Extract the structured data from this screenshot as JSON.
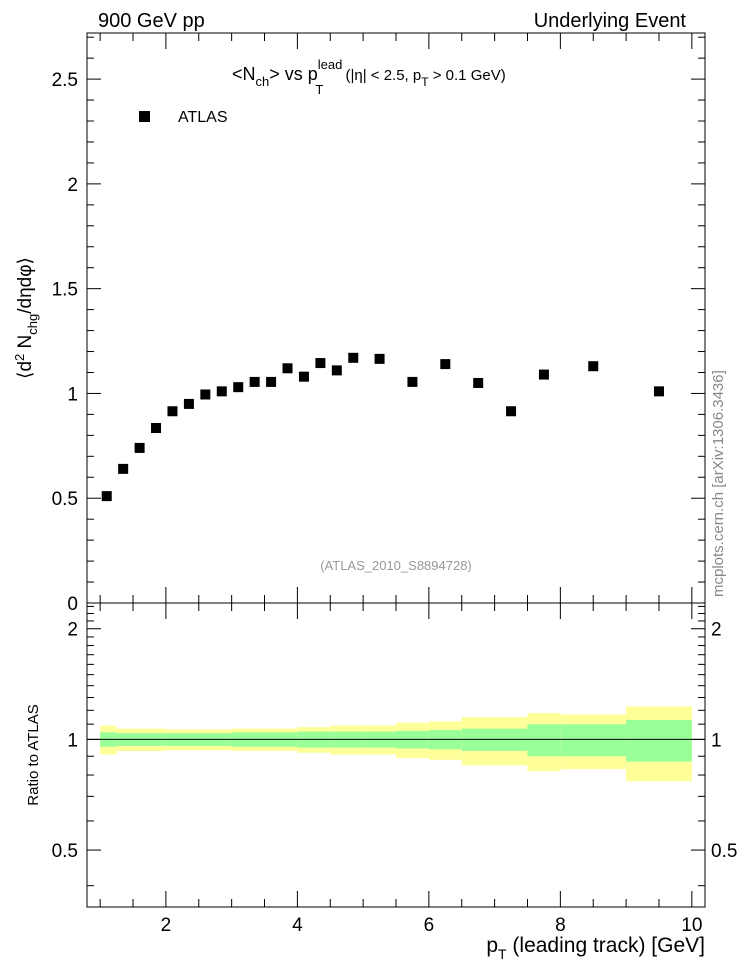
{
  "header": {
    "left": "900 GeV pp",
    "right": "Underlying Event"
  },
  "title": {
    "main": "<N",
    "main_sub": "ch",
    "vs": "> vs p",
    "lead_sup": "lead",
    "lead_sub": "T",
    "cuts_a": " (|η| < 2.5, p",
    "cuts_sub": "T",
    "cuts_b": " > 0.1 GeV)"
  },
  "side_label": "mcplots.cern.ch [arXiv:1306.3436]",
  "analysis_label": "(ATLAS_2010_S8894728)",
  "legend": {
    "entry": "ATLAS"
  },
  "y_label": {
    "prefix": "⟨d",
    "sup": "2",
    "mid": " N",
    "sub": "chg",
    "suffix": "/dηdφ⟩"
  },
  "ratio_y_label": "Ratio to ATLAS",
  "x_label": {
    "prefix": "p",
    "sub": "T",
    "suffix": " (leading track) [GeV]"
  },
  "colors": {
    "band_outer": "#ffff99",
    "band_inner": "#99ff99",
    "marker": "#000000",
    "gray_text": "#999999"
  },
  "chart_data": {
    "type": "scatter",
    "main": {
      "xlim": [
        0.8,
        10.2
      ],
      "ylim": [
        0,
        2.72
      ],
      "yticks": [
        0,
        0.5,
        1,
        1.5,
        2,
        2.5
      ],
      "ytick_labels": [
        "0",
        "0.5",
        "1",
        "1.5",
        "2",
        "2.5"
      ],
      "series": [
        {
          "name": "ATLAS",
          "x": [
            1.1,
            1.35,
            1.6,
            1.85,
            2.1,
            2.35,
            2.6,
            2.85,
            3.1,
            3.35,
            3.6,
            3.85,
            4.1,
            4.35,
            4.6,
            4.85,
            5.25,
            5.75,
            6.25,
            6.75,
            7.25,
            7.75,
            8.5,
            9.5
          ],
          "y": [
            0.51,
            0.64,
            0.74,
            0.835,
            0.915,
            0.95,
            0.995,
            1.01,
            1.03,
            1.055,
            1.055,
            1.12,
            1.08,
            1.145,
            1.11,
            1.17,
            1.165,
            1.055,
            1.14,
            1.05,
            0.915,
            1.09,
            1.13,
            1.01
          ]
        }
      ]
    },
    "ratio": {
      "ylim": [
        0.35,
        2.35
      ],
      "yticks": [
        0.5,
        1,
        2
      ],
      "ytick_labels": [
        "0.5",
        "1",
        "2"
      ],
      "bins": [
        {
          "lo": 1.0,
          "hi": 1.25,
          "inner": 0.045,
          "outer": 0.09
        },
        {
          "lo": 1.25,
          "hi": 2.0,
          "inner": 0.04,
          "outer": 0.07
        },
        {
          "lo": 2.0,
          "hi": 3.0,
          "inner": 0.04,
          "outer": 0.065
        },
        {
          "lo": 3.0,
          "hi": 4.0,
          "inner": 0.045,
          "outer": 0.07
        },
        {
          "lo": 4.0,
          "hi": 4.5,
          "inner": 0.05,
          "outer": 0.08
        },
        {
          "lo": 4.5,
          "hi": 5.0,
          "inner": 0.05,
          "outer": 0.09
        },
        {
          "lo": 5.0,
          "hi": 5.5,
          "inner": 0.05,
          "outer": 0.09
        },
        {
          "lo": 5.5,
          "hi": 6.0,
          "inner": 0.055,
          "outer": 0.11
        },
        {
          "lo": 6.0,
          "hi": 6.5,
          "inner": 0.06,
          "outer": 0.12
        },
        {
          "lo": 6.5,
          "hi": 7.5,
          "inner": 0.07,
          "outer": 0.15
        },
        {
          "lo": 7.5,
          "hi": 8.0,
          "inner": 0.1,
          "outer": 0.18
        },
        {
          "lo": 8.0,
          "hi": 9.0,
          "inner": 0.1,
          "outer": 0.17
        },
        {
          "lo": 9.0,
          "hi": 10.0,
          "inner": 0.13,
          "outer": 0.23
        }
      ]
    },
    "xticks": [
      2,
      4,
      6,
      8,
      10
    ],
    "xtick_labels": [
      "2",
      "4",
      "6",
      "8",
      "10"
    ]
  }
}
